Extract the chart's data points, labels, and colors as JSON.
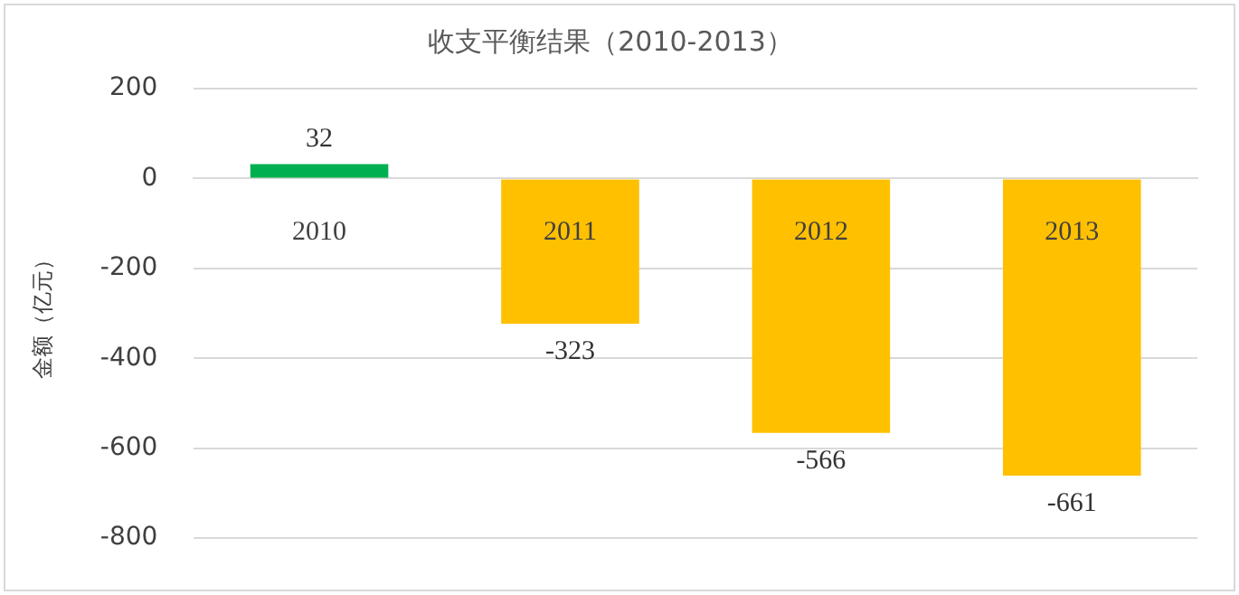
{
  "chart_data": {
    "type": "bar",
    "title": "收支平衡结果（2010-2013）",
    "ylabel": "金额（亿元）",
    "categories": [
      "2010",
      "2011",
      "2012",
      "2013"
    ],
    "values": [
      32,
      -323,
      -566,
      -661
    ],
    "colors": [
      "#00b050",
      "#ffc000",
      "#ffc000",
      "#ffc000"
    ],
    "ylim": [
      -800,
      200
    ],
    "yticks": [
      -800,
      -600,
      -400,
      -200,
      0,
      200
    ],
    "grid": "y",
    "data_labels": true,
    "legend": false
  }
}
